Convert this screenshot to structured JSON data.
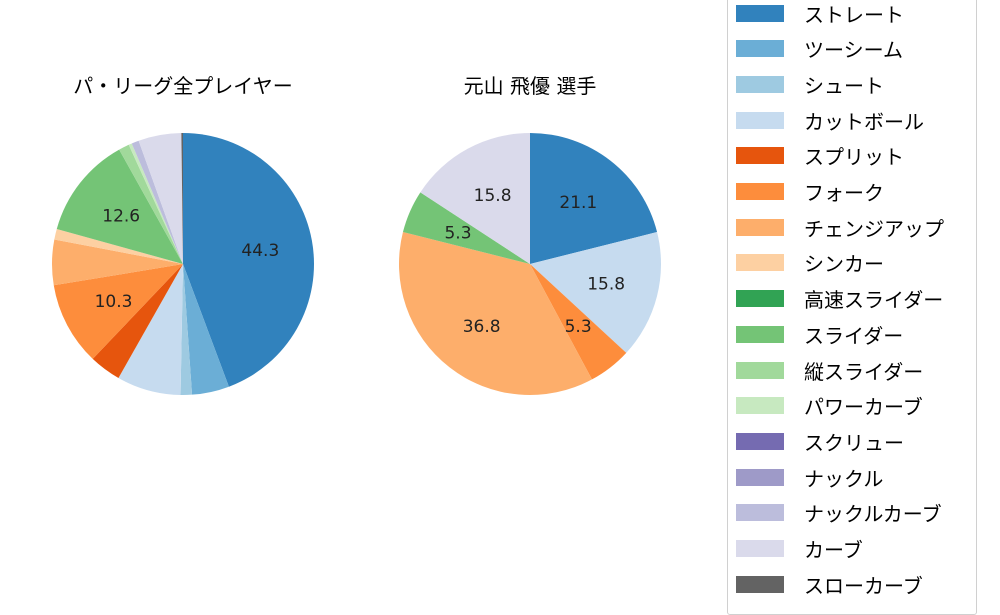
{
  "chart_data": [
    {
      "type": "pie",
      "title": "パ・リーグ全プレイヤー",
      "start_angle": 90,
      "direction": "clockwise",
      "categories": [
        "ストレート",
        "ツーシーム",
        "シュート",
        "カットボール",
        "スプリット",
        "フォーク",
        "チェンジアップ",
        "シンカー",
        "高速スライダー",
        "スライダー",
        "縦スライダー",
        "パワーカーブ",
        "スクリュー",
        "ナックル",
        "ナックルカーブ",
        "カーブ",
        "スローカーブ"
      ],
      "values": [
        44.3,
        4.6,
        1.4,
        7.9,
        3.9,
        10.3,
        5.6,
        1.3,
        0.0,
        12.6,
        1.3,
        0.4,
        0.0,
        0.0,
        0.9,
        5.3,
        0.2
      ],
      "labels_shown": [
        "44.3",
        "10.3",
        "12.6"
      ]
    },
    {
      "type": "pie",
      "title": "元山 飛優  選手",
      "start_angle": 90,
      "direction": "clockwise",
      "categories": [
        "ストレート",
        "ツーシーム",
        "シュート",
        "カットボール",
        "スプリット",
        "フォーク",
        "チェンジアップ",
        "シンカー",
        "高速スライダー",
        "スライダー",
        "縦スライダー",
        "パワーカーブ",
        "スクリュー",
        "ナックル",
        "ナックルカーブ",
        "カーブ",
        "スローカーブ"
      ],
      "values": [
        21.1,
        0,
        0,
        15.8,
        0,
        5.3,
        36.8,
        0,
        0,
        5.3,
        0,
        0,
        0,
        0,
        0,
        15.8,
        0
      ],
      "labels_shown": [
        "21.1",
        "15.8",
        "5.3",
        "36.8",
        "5.3",
        "15.8"
      ]
    }
  ],
  "titles": {
    "left": "パ・リーグ全プレイヤー",
    "right": "元山 飛優  選手"
  },
  "legend": {
    "items": [
      {
        "label": "ストレート",
        "color": "#3182bd"
      },
      {
        "label": "ツーシーム",
        "color": "#6baed6"
      },
      {
        "label": "シュート",
        "color": "#9ecae1"
      },
      {
        "label": "カットボール",
        "color": "#c6dbef"
      },
      {
        "label": "スプリット",
        "color": "#e6550d"
      },
      {
        "label": "フォーク",
        "color": "#fd8d3c"
      },
      {
        "label": "チェンジアップ",
        "color": "#fdae6b"
      },
      {
        "label": "シンカー",
        "color": "#fdd0a2"
      },
      {
        "label": "高速スライダー",
        "color": "#31a354"
      },
      {
        "label": "スライダー",
        "color": "#74c476"
      },
      {
        "label": "縦スライダー",
        "color": "#a1d99b"
      },
      {
        "label": "パワーカーブ",
        "color": "#c7e9c0"
      },
      {
        "label": "スクリュー",
        "color": "#756bb1"
      },
      {
        "label": "ナックル",
        "color": "#9e9ac8"
      },
      {
        "label": "ナックルカーブ",
        "color": "#bcbddc"
      },
      {
        "label": "カーブ",
        "color": "#dadaeb"
      },
      {
        "label": "スローカーブ",
        "color": "#636363"
      }
    ]
  }
}
